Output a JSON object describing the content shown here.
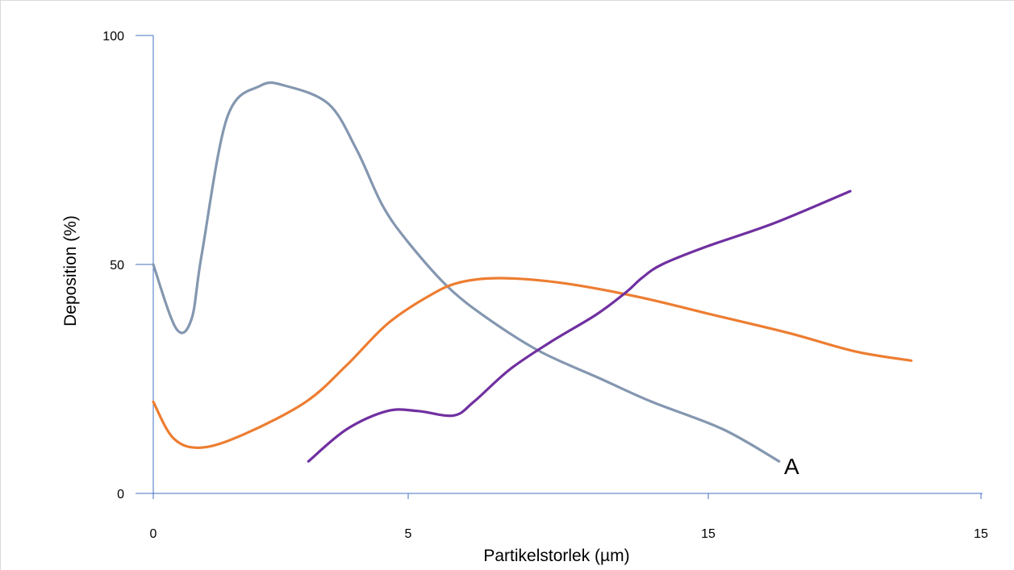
{
  "chart_data": {
    "type": "line",
    "xlabel": "Partikelstorlek (µm)",
    "ylabel": "Deposition (%)",
    "x_ticks": [
      "0",
      "5",
      "15",
      "15"
    ],
    "y_ticks": [
      "0",
      "50",
      "100"
    ],
    "xlim": [
      0,
      16.3
    ],
    "ylim": [
      0,
      100
    ],
    "grid": false,
    "legend": "none",
    "annotations": [
      {
        "text": "A",
        "x": 12.4,
        "y": 6
      }
    ],
    "series": [
      {
        "color": "#8497b0",
        "points": [
          [
            0,
            50
          ],
          [
            0.45,
            36
          ],
          [
            0.75,
            38
          ],
          [
            0.95,
            52
          ],
          [
            1.45,
            82
          ],
          [
            2.1,
            89
          ],
          [
            2.6,
            89
          ],
          [
            3.45,
            85
          ],
          [
            4.0,
            75
          ],
          [
            4.5,
            63
          ],
          [
            5.0,
            55
          ],
          [
            5.8,
            45
          ],
          [
            6.6,
            38
          ],
          [
            7.6,
            31
          ],
          [
            8.8,
            25
          ],
          [
            9.8,
            20
          ],
          [
            11.2,
            14
          ],
          [
            12.3,
            7
          ]
        ]
      },
      {
        "color": "#ed7d31",
        "points": [
          [
            0,
            20
          ],
          [
            0.4,
            12
          ],
          [
            0.95,
            10
          ],
          [
            1.8,
            13
          ],
          [
            3.0,
            20
          ],
          [
            3.8,
            28
          ],
          [
            4.6,
            37
          ],
          [
            5.4,
            43
          ],
          [
            6.0,
            46
          ],
          [
            6.8,
            47
          ],
          [
            8.0,
            46
          ],
          [
            9.5,
            43
          ],
          [
            11.0,
            39
          ],
          [
            12.5,
            35
          ],
          [
            13.8,
            31
          ],
          [
            14.9,
            29
          ]
        ]
      },
      {
        "color": "#7030a0",
        "points": [
          [
            3.05,
            7
          ],
          [
            3.8,
            14
          ],
          [
            4.6,
            18
          ],
          [
            5.2,
            18
          ],
          [
            5.9,
            17
          ],
          [
            6.3,
            20
          ],
          [
            7.0,
            27
          ],
          [
            7.8,
            33
          ],
          [
            8.7,
            39
          ],
          [
            9.3,
            44
          ],
          [
            9.6,
            47
          ],
          [
            10.0,
            50
          ],
          [
            10.9,
            54
          ],
          [
            12.2,
            59
          ],
          [
            13.7,
            66
          ]
        ]
      }
    ]
  }
}
